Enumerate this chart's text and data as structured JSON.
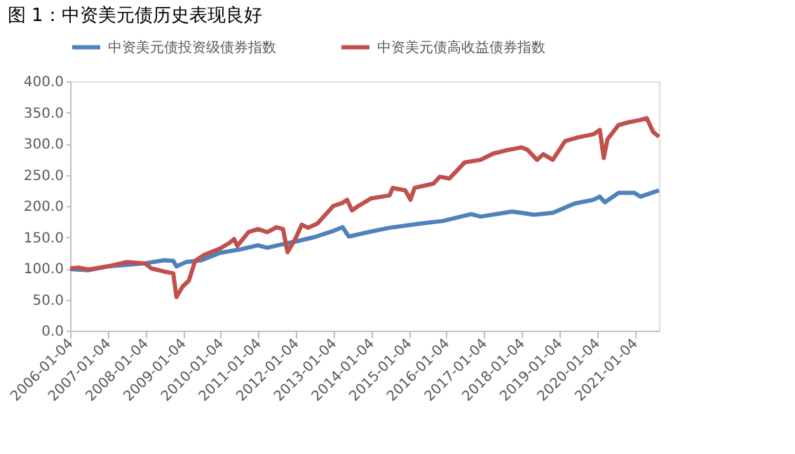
{
  "chart_data": {
    "type": "line",
    "title": "图 1：中资美元债历史表现良好",
    "xlim": [
      "2006-01-04",
      "2021-08-28"
    ],
    "xticks": [
      "2006-01-04",
      "2007-01-04",
      "2008-01-04",
      "2009-01-04",
      "2010-01-04",
      "2011-01-04",
      "2012-01-04",
      "2013-01-04",
      "2014-01-04",
      "2015-01-04",
      "2016-01-04",
      "2017-01-04",
      "2018-01-04",
      "2019-01-04",
      "2020-01-04",
      "2021-01-04"
    ],
    "ylim": [
      0,
      400
    ],
    "yticks": [
      {
        "value": 0,
        "label": "0.0"
      },
      {
        "value": 50,
        "label": "50.0"
      },
      {
        "value": 100,
        "label": "100.0"
      },
      {
        "value": 150,
        "label": "150.0"
      },
      {
        "value": 200,
        "label": "200.0"
      },
      {
        "value": 250,
        "label": "250.0"
      },
      {
        "value": 300,
        "label": "300.0"
      },
      {
        "value": 350,
        "label": "350.0"
      },
      {
        "value": 400,
        "label": "400.0"
      }
    ],
    "grid": false,
    "legend": "top",
    "marker": "none",
    "line_style": "solid",
    "series": [
      {
        "name": "中资美元债投资级债券指数",
        "color": "#4f81bd",
        "x": [
          "2006-01-04",
          "2006-07-01",
          "2007-01-01",
          "2008-01-01",
          "2008-07-01",
          "2008-10-01",
          "2008-11-01",
          "2009-02-01",
          "2009-07-01",
          "2010-01-01",
          "2010-07-01",
          "2011-01-01",
          "2011-04-01",
          "2011-10-01",
          "2012-01-01",
          "2012-07-01",
          "2013-01-01",
          "2013-04-01",
          "2013-06-01",
          "2014-01-01",
          "2014-07-01",
          "2015-05-01",
          "2015-12-01",
          "2016-09-01",
          "2016-12-01",
          "2017-10-01",
          "2018-01-01",
          "2018-05-01",
          "2018-11-01",
          "2019-06-01",
          "2019-12-01",
          "2020-02-01",
          "2020-03-20",
          "2020-08-01",
          "2021-01-01",
          "2021-03-01",
          "2021-08-28"
        ],
        "values": [
          99,
          97,
          103,
          108,
          113,
          112,
          103,
          110,
          113,
          125,
          130,
          137,
          133,
          140,
          143,
          150,
          160,
          166,
          151,
          159,
          165,
          172,
          176,
          187,
          183,
          191,
          189,
          186,
          189,
          204,
          210,
          215,
          206,
          221,
          221,
          215,
          225
        ]
      },
      {
        "name": "中资美元债高收益债券指数",
        "color": "#c0504d",
        "x": [
          "2006-01-04",
          "2006-04-01",
          "2006-07-01",
          "2007-01-01",
          "2007-07-01",
          "2008-01-01",
          "2008-03-01",
          "2008-07-01",
          "2008-10-01",
          "2008-11-01",
          "2009-01-01",
          "2009-03-01",
          "2009-05-01",
          "2009-08-01",
          "2010-01-01",
          "2010-04-01",
          "2010-05-15",
          "2010-06-15",
          "2010-10-01",
          "2011-01-01",
          "2011-04-01",
          "2011-07-01",
          "2011-09-01",
          "2011-10-15",
          "2012-01-01",
          "2012-03-01",
          "2012-05-01",
          "2012-08-01",
          "2013-01-01",
          "2013-04-01",
          "2013-05-15",
          "2013-07-01",
          "2013-09-01",
          "2014-01-01",
          "2014-07-01",
          "2014-08-01",
          "2014-12-01",
          "2015-01-20",
          "2015-03-01",
          "2015-09-01",
          "2015-11-01",
          "2016-02-01",
          "2016-07-01",
          "2016-12-01",
          "2017-04-01",
          "2017-08-01",
          "2018-01-01",
          "2018-03-01",
          "2018-06-01",
          "2018-08-01",
          "2018-11-01",
          "2019-03-01",
          "2019-07-01",
          "2019-12-01",
          "2020-02-01",
          "2020-03-10",
          "2020-04-15",
          "2020-08-01",
          "2020-11-01",
          "2021-03-01",
          "2021-05-01",
          "2021-07-01",
          "2021-08-28"
        ],
        "values": [
          100,
          101,
          98,
          103,
          110,
          108,
          100,
          95,
          92,
          54,
          71,
          80,
          112,
          122,
          132,
          141,
          147,
          136,
          158,
          163,
          158,
          166,
          163,
          126,
          148,
          170,
          165,
          172,
          200,
          205,
          210,
          193,
          200,
          212,
          217,
          229,
          225,
          210,
          229,
          236,
          247,
          244,
          270,
          274,
          284,
          289,
          294,
          290,
          274,
          283,
          274,
          304,
          310,
          315,
          322,
          277,
          307,
          330,
          334,
          338,
          341,
          319,
          311
        ]
      }
    ]
  }
}
